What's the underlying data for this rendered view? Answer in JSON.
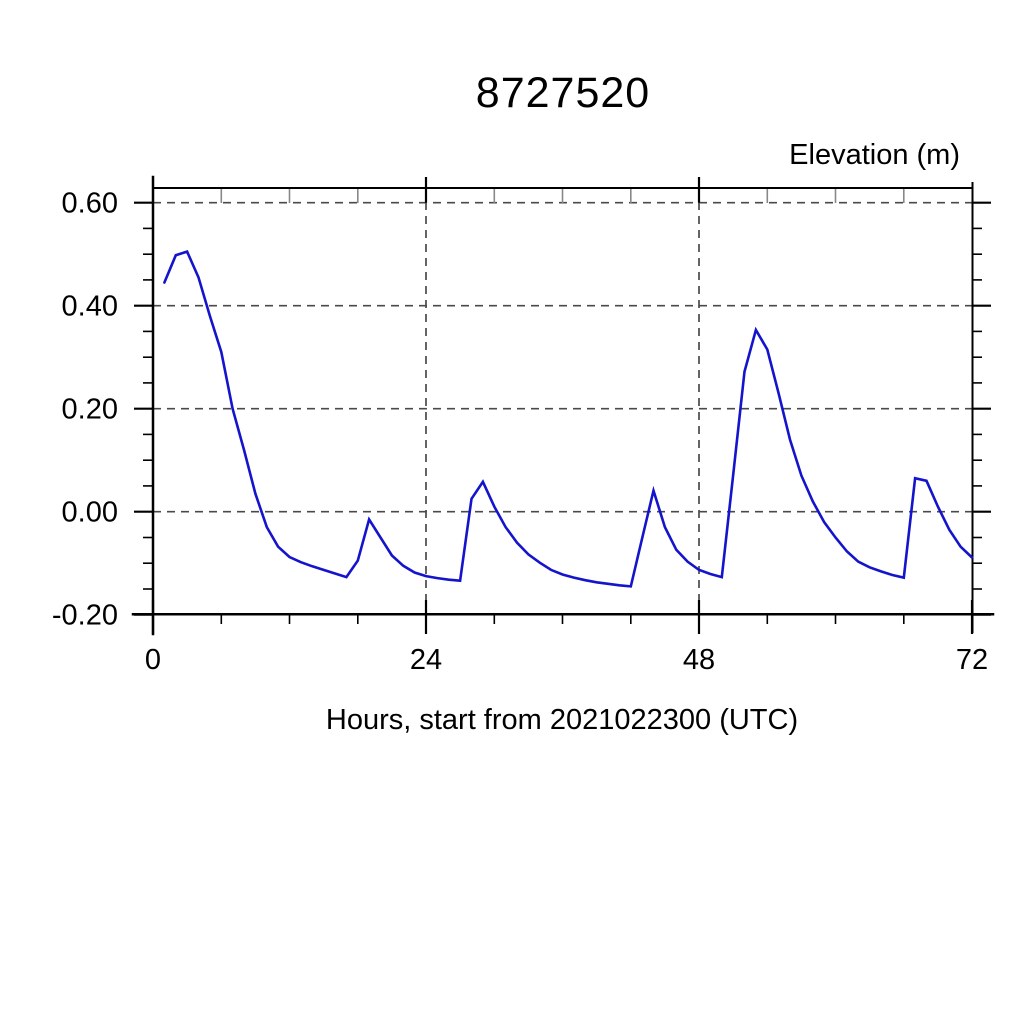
{
  "page": {
    "background": "#ffffff"
  },
  "chart_data": {
    "type": "line",
    "title": "8727520",
    "corner_label": "Elevation (m)",
    "xlabel": "Hours, start from 2021022300 (UTC)",
    "legend": "none",
    "grid": "dashed",
    "grid_color": "#4a4a4a",
    "axis_color": "#000000",
    "line_color": "#1414cc",
    "x_axis": {
      "min": 0,
      "max": 72,
      "major_ticks": [
        {
          "value": 0,
          "label": "0"
        },
        {
          "value": 24,
          "label": "24"
        },
        {
          "value": 48,
          "label": "48"
        },
        {
          "value": 72,
          "label": "72"
        }
      ],
      "minor_step": 6,
      "grid_at": [
        24,
        48
      ]
    },
    "y_axis": {
      "min": -0.2,
      "max": 0.63,
      "major_ticks": [
        {
          "value": 0.6,
          "label": "0.60"
        },
        {
          "value": 0.4,
          "label": "0.40"
        },
        {
          "value": 0.2,
          "label": "0.20"
        },
        {
          "value": 0.0,
          "label": "0.00"
        },
        {
          "value": -0.2,
          "label": "-0.20"
        }
      ],
      "minor_step": 0.05,
      "grid_at": [
        0.6,
        0.4,
        0.2,
        0.0,
        -0.2
      ]
    },
    "series": [
      {
        "name": "elevation_m",
        "x": [
          1,
          2,
          3,
          4,
          5,
          6,
          7,
          8,
          9,
          10,
          11,
          12,
          13,
          14,
          15,
          16,
          17,
          18,
          19,
          20,
          21,
          22,
          23,
          24,
          25,
          26,
          27,
          28,
          29,
          30,
          31,
          32,
          33,
          34,
          35,
          36,
          37,
          38,
          39,
          40,
          41,
          42,
          43,
          44,
          45,
          46,
          47,
          48,
          49,
          50,
          51,
          52,
          53,
          54,
          55,
          56,
          57,
          58,
          59,
          60,
          61,
          62,
          63,
          64,
          65,
          66,
          67,
          68,
          69,
          70,
          71,
          72
        ],
        "y": [
          0.445,
          0.498,
          0.505,
          0.455,
          0.38,
          0.31,
          0.2,
          0.12,
          0.035,
          -0.03,
          -0.068,
          -0.088,
          -0.098,
          -0.106,
          -0.113,
          -0.12,
          -0.127,
          -0.095,
          -0.015,
          -0.05,
          -0.085,
          -0.105,
          -0.118,
          -0.125,
          -0.129,
          -0.132,
          -0.134,
          0.025,
          0.058,
          0.01,
          -0.03,
          -0.06,
          -0.083,
          -0.099,
          -0.113,
          -0.122,
          -0.128,
          -0.133,
          -0.137,
          -0.14,
          -0.143,
          -0.145,
          -0.052,
          0.041,
          -0.03,
          -0.074,
          -0.097,
          -0.113,
          -0.121,
          -0.127,
          0.07,
          0.272,
          0.353,
          0.315,
          0.23,
          0.14,
          0.07,
          0.02,
          -0.02,
          -0.05,
          -0.077,
          -0.097,
          -0.108,
          -0.116,
          -0.123,
          -0.128,
          0.065,
          0.06,
          0.01,
          -0.035,
          -0.068,
          -0.089
        ]
      }
    ]
  }
}
